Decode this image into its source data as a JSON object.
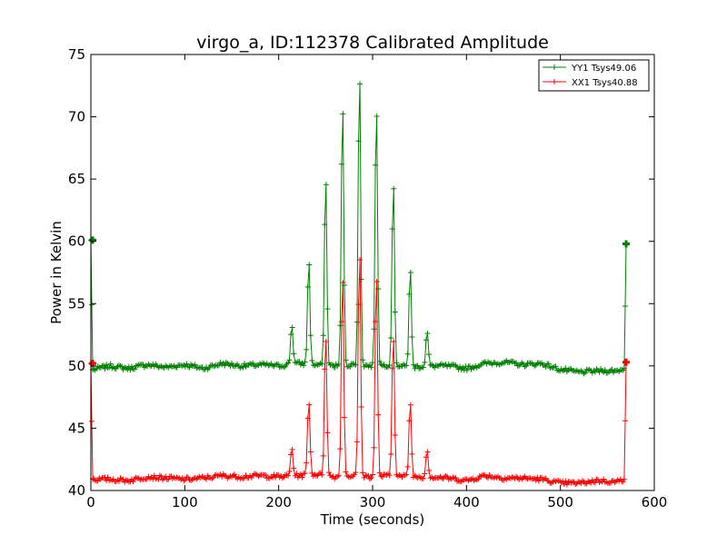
{
  "chart_data": {
    "type": "line",
    "title": "virgo_a, ID:112378 Calibrated Amplitude",
    "xlabel": "Time (seconds)",
    "ylabel": "Power in Kelvin",
    "xlim": [
      0,
      600
    ],
    "ylim": [
      40,
      75
    ],
    "xticks": [
      0,
      100,
      200,
      300,
      400,
      500,
      600
    ],
    "yticks": [
      40,
      45,
      50,
      55,
      60,
      65,
      70,
      75
    ],
    "grid": false,
    "legend_position": "top-right",
    "peaks": [
      {
        "t": 214,
        "yy": 53.4,
        "xx": 43.5
      },
      {
        "t": 232,
        "yy": 58.7,
        "xx": 47.5
      },
      {
        "t": 250,
        "yy": 65.7,
        "xx": 53.0
      },
      {
        "t": 268,
        "yy": 72.0,
        "xx": 58.0
      },
      {
        "t": 286,
        "yy": 74.5,
        "xx": 60.0
      },
      {
        "t": 304,
        "yy": 71.8,
        "xx": 58.0
      },
      {
        "t": 322,
        "yy": 65.2,
        "xx": 53.0
      },
      {
        "t": 340,
        "yy": 58.0,
        "xx": 47.3
      },
      {
        "t": 358,
        "yy": 52.8,
        "xx": 43.3
      }
    ],
    "series": [
      {
        "name": "YY1 Tsys49.06",
        "color": "#008000",
        "baseline": [
          [
            2,
            49.7
          ],
          [
            20,
            50.0
          ],
          [
            40,
            49.8
          ],
          [
            60,
            50.1
          ],
          [
            80,
            49.9
          ],
          [
            100,
            50.1
          ],
          [
            120,
            49.8
          ],
          [
            140,
            50.2
          ],
          [
            160,
            50.0
          ],
          [
            180,
            50.1
          ],
          [
            200,
            50.0
          ],
          [
            220,
            50.2
          ],
          [
            240,
            50.1
          ],
          [
            260,
            50.0
          ],
          [
            280,
            50.1
          ],
          [
            300,
            50.0
          ],
          [
            320,
            50.1
          ],
          [
            340,
            49.9
          ],
          [
            360,
            50.0
          ],
          [
            380,
            50.0
          ],
          [
            400,
            49.8
          ],
          [
            420,
            50.2
          ],
          [
            440,
            50.3
          ],
          [
            460,
            50.1
          ],
          [
            480,
            50.2
          ],
          [
            500,
            49.7
          ],
          [
            520,
            49.5
          ],
          [
            540,
            49.6
          ],
          [
            560,
            49.6
          ],
          [
            568,
            49.8
          ]
        ],
        "start_spike": 60.1,
        "end_spike": 59.8
      },
      {
        "name": "XX1 Tsys40.88",
        "color": "#ff0000",
        "baseline": [
          [
            2,
            40.9
          ],
          [
            20,
            40.9
          ],
          [
            40,
            40.8
          ],
          [
            60,
            41.1
          ],
          [
            80,
            41.0
          ],
          [
            100,
            40.9
          ],
          [
            120,
            41.0
          ],
          [
            140,
            41.2
          ],
          [
            160,
            41.1
          ],
          [
            180,
            41.2
          ],
          [
            200,
            41.1
          ],
          [
            220,
            41.2
          ],
          [
            240,
            41.3
          ],
          [
            260,
            41.1
          ],
          [
            280,
            41.2
          ],
          [
            300,
            41.1
          ],
          [
            320,
            41.2
          ],
          [
            340,
            41.1
          ],
          [
            360,
            41.1
          ],
          [
            380,
            41.0
          ],
          [
            400,
            40.8
          ],
          [
            420,
            41.2
          ],
          [
            440,
            41.0
          ],
          [
            460,
            41.0
          ],
          [
            480,
            40.9
          ],
          [
            500,
            40.6
          ],
          [
            520,
            40.6
          ],
          [
            540,
            40.8
          ],
          [
            560,
            40.7
          ],
          [
            568,
            40.9
          ]
        ],
        "start_spike": 50.2,
        "end_spike": 50.3
      }
    ]
  }
}
